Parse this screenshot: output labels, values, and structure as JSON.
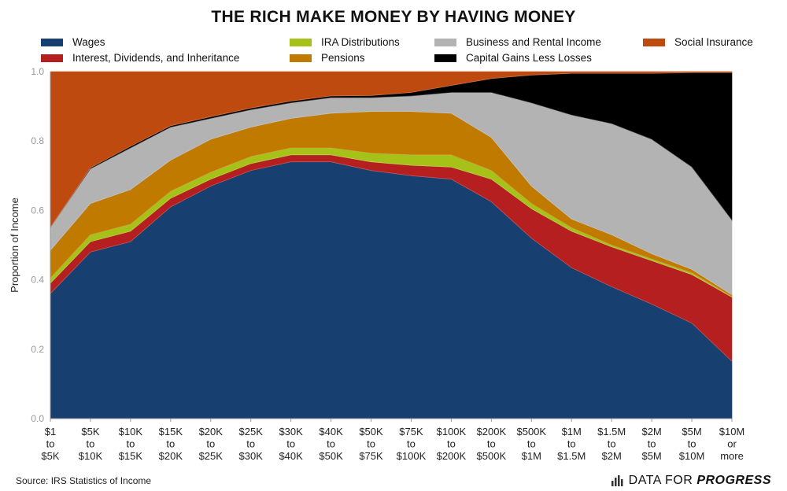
{
  "chart_data": {
    "type": "area",
    "title": "THE RICH MAKE MONEY BY HAVING MONEY",
    "xlabel": "",
    "ylabel": "Proportion of Income",
    "ylim": [
      0,
      1
    ],
    "yticks": [
      "0.0",
      "0.2",
      "0.4",
      "0.6",
      "0.8",
      "1.0"
    ],
    "stacked": true,
    "legend_position": "top",
    "grid": false,
    "categories": [
      [
        "$1",
        "to",
        "$5K"
      ],
      [
        "$5K",
        "to",
        "$10K"
      ],
      [
        "$10K",
        "to",
        "$15K"
      ],
      [
        "$15K",
        "to",
        "$20K"
      ],
      [
        "$20K",
        "to",
        "$25K"
      ],
      [
        "$25K",
        "to",
        "$30K"
      ],
      [
        "$30K",
        "to",
        "$40K"
      ],
      [
        "$40K",
        "to",
        "$50K"
      ],
      [
        "$50K",
        "to",
        "$75K"
      ],
      [
        "$75K",
        "to",
        "$100K"
      ],
      [
        "$100K",
        "to",
        "$200K"
      ],
      [
        "$200K",
        "to",
        "$500K"
      ],
      [
        "$500K",
        "to",
        "$1M"
      ],
      [
        "$1M",
        "to",
        "$1.5M"
      ],
      [
        "$1.5M",
        "to",
        "$2M"
      ],
      [
        "$2M",
        "to",
        "$5M"
      ],
      [
        "$5M",
        "to",
        "$10M"
      ],
      [
        "$10M",
        "or",
        "more"
      ]
    ],
    "series": [
      {
        "name": "Wages",
        "color": "#173f6f",
        "values": [
          0.36,
          0.48,
          0.51,
          0.61,
          0.67,
          0.715,
          0.74,
          0.74,
          0.715,
          0.7,
          0.69,
          0.625,
          0.52,
          0.435,
          0.38,
          0.33,
          0.275,
          0.165
        ]
      },
      {
        "name": "Interest, Dividends, and Inheritance",
        "color": "#b61f1f",
        "values": [
          0.03,
          0.03,
          0.03,
          0.025,
          0.02,
          0.02,
          0.02,
          0.02,
          0.025,
          0.03,
          0.035,
          0.065,
          0.085,
          0.105,
          0.115,
          0.125,
          0.14,
          0.185
        ]
      },
      {
        "name": "IRA Distributions",
        "color": "#a6c219",
        "values": [
          0.015,
          0.02,
          0.02,
          0.02,
          0.02,
          0.02,
          0.02,
          0.02,
          0.025,
          0.03,
          0.035,
          0.025,
          0.015,
          0.01,
          0.005,
          0.005,
          0.005,
          0.002
        ]
      },
      {
        "name": "Pensions",
        "color": "#c07a00",
        "values": [
          0.08,
          0.09,
          0.1,
          0.09,
          0.095,
          0.085,
          0.085,
          0.1,
          0.12,
          0.125,
          0.12,
          0.095,
          0.05,
          0.025,
          0.03,
          0.015,
          0.01,
          0.005
        ]
      },
      {
        "name": "Business and Rental Income",
        "color": "#b3b3b3",
        "values": [
          0.065,
          0.1,
          0.12,
          0.095,
          0.06,
          0.05,
          0.045,
          0.045,
          0.04,
          0.045,
          0.06,
          0.13,
          0.24,
          0.3,
          0.32,
          0.33,
          0.295,
          0.215
        ]
      },
      {
        "name": "Capital Gains Less Losses",
        "color": "#000000",
        "values": [
          0.0,
          0.003,
          0.005,
          0.004,
          0.005,
          0.005,
          0.005,
          0.005,
          0.006,
          0.01,
          0.02,
          0.04,
          0.08,
          0.12,
          0.145,
          0.19,
          0.272,
          0.425
        ]
      },
      {
        "name": "Social Insurance",
        "color": "#bf4a10",
        "values": [
          0.45,
          0.277,
          0.215,
          0.156,
          0.13,
          0.105,
          0.085,
          0.07,
          0.069,
          0.06,
          0.04,
          0.02,
          0.01,
          0.005,
          0.005,
          0.005,
          0.003,
          0.003
        ]
      }
    ]
  },
  "legend": [
    {
      "label": "Wages",
      "color": "#173f6f"
    },
    {
      "label": "Interest, Dividends, and Inheritance",
      "color": "#b61f1f"
    },
    {
      "label": "IRA Distributions",
      "color": "#a6c219"
    },
    {
      "label": "Pensions",
      "color": "#c07a00"
    },
    {
      "label": "Business and Rental Income",
      "color": "#b3b3b3"
    },
    {
      "label": "Capital Gains Less Losses",
      "color": "#000000"
    },
    {
      "label": "Social Insurance",
      "color": "#bf4a10"
    }
  ],
  "source": "Source: IRS Statistics of Income",
  "brand": {
    "light": "DATA FOR",
    "strong": "PROGRESS",
    "icon": "bar-chart-logo-icon"
  }
}
